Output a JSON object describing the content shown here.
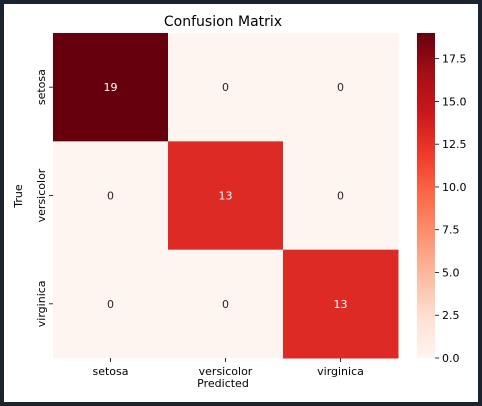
{
  "chart_data": {
    "type": "heatmap",
    "title": "Confusion Matrix",
    "xlabel": "Predicted",
    "ylabel": "True",
    "x_categories": [
      "setosa",
      "versicolor",
      "virginica"
    ],
    "y_categories": [
      "setosa",
      "versicolor",
      "virginica"
    ],
    "values": [
      [
        19,
        0,
        0
      ],
      [
        0,
        13,
        0
      ],
      [
        0,
        0,
        13
      ]
    ],
    "colormap": "Reds",
    "colorbar": {
      "range": [
        0,
        19
      ],
      "ticks": [
        0.0,
        2.5,
        5.0,
        7.5,
        10.0,
        12.5,
        15.0,
        17.5
      ],
      "tick_labels": [
        "0.0",
        "2.5",
        "5.0",
        "7.5",
        "10.0",
        "12.5",
        "15.0",
        "17.5"
      ]
    },
    "colors": {
      "low": "#fff5f0",
      "high": "#67000d",
      "dark_annotation": "#262626",
      "light_annotation": "#ffffff"
    }
  }
}
